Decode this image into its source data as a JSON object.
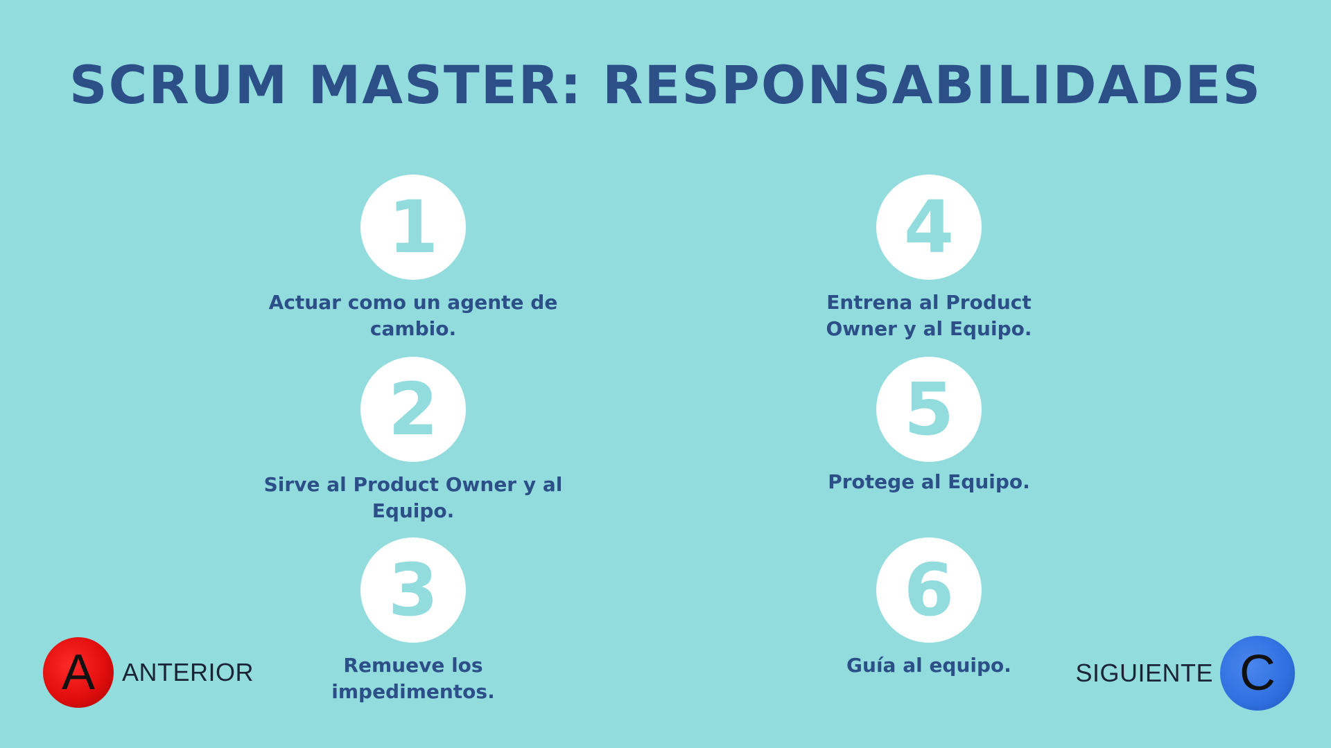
{
  "title": "SCRUM MASTER: RESPONSABILIDADES",
  "items": [
    {
      "number": "1",
      "text": "Actuar como un agente de cambio."
    },
    {
      "number": "2",
      "text": "Sirve al Product Owner y al Equipo."
    },
    {
      "number": "3",
      "text": "Remueve los impedimentos."
    },
    {
      "number": "4",
      "text": "Entrena al Product Owner y al Equipo."
    },
    {
      "number": "5",
      "text": "Protege al Equipo."
    },
    {
      "number": "6",
      "text": "Guía al equipo."
    }
  ],
  "nav": {
    "prev_icon": "A",
    "prev_label": "ANTERIOR",
    "next_icon": "C",
    "next_label": "SIGUIENTE"
  },
  "colors": {
    "background": "#92dcde",
    "text": "#2c4f88",
    "prev_button": "#e10e0e",
    "next_button": "#2f6fdf"
  }
}
